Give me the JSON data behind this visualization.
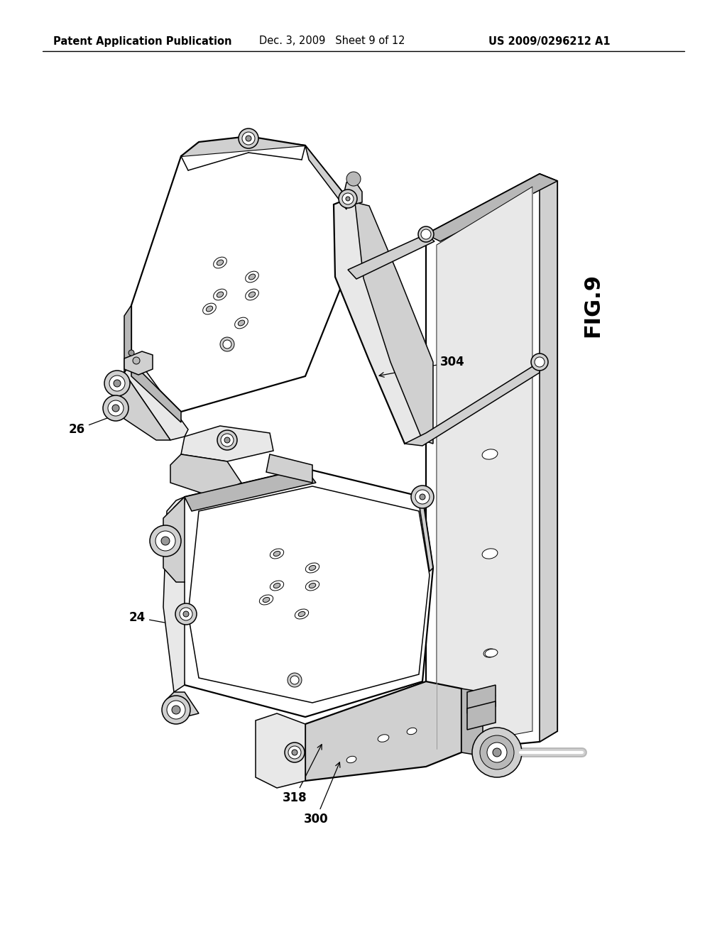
{
  "bg_color": "#ffffff",
  "header_left": "Patent Application Publication",
  "header_mid": "Dec. 3, 2009   Sheet 9 of 12",
  "header_right": "US 2009/0296212 A1",
  "fig_label": "FIG.9",
  "header_fontsize": 10.5,
  "fig_label_fontsize": 22,
  "ref_fontsize": 12,
  "page_width": 10.24,
  "page_height": 13.2,
  "dpi": 100,
  "lw_heavy": 1.6,
  "lw_med": 1.1,
  "lw_light": 0.7,
  "c_black": "#000000",
  "c_gray1": "#e8e8e8",
  "c_gray2": "#d0d0d0",
  "c_gray3": "#b8b8b8",
  "c_gray4": "#989898",
  "c_white": "#ffffff"
}
